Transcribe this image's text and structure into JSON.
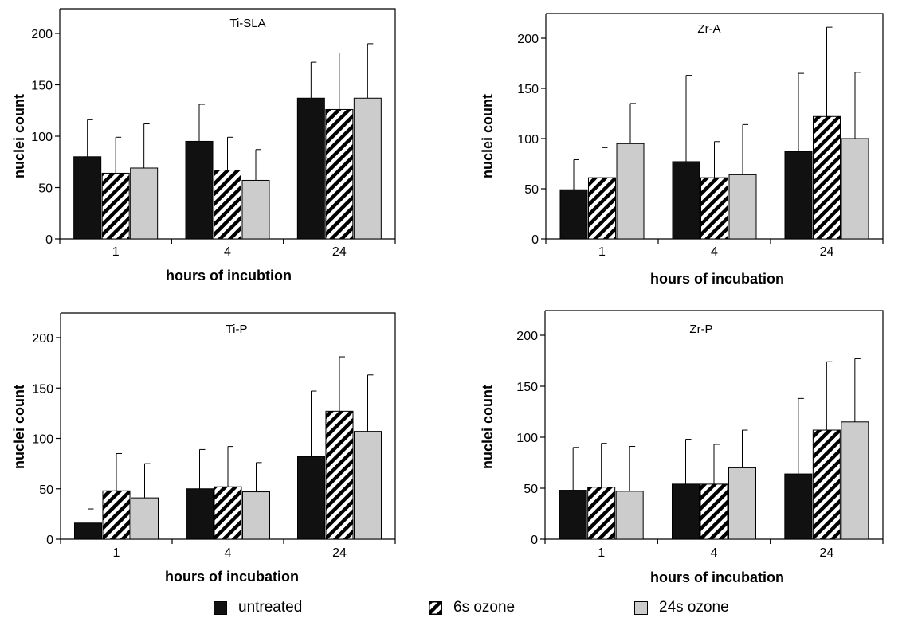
{
  "legend": {
    "untreated": "untreated",
    "ozone6": "6s ozone",
    "ozone24": "24s ozone"
  },
  "colors": {
    "untreated": "#111111",
    "ozone24": "#cccccc",
    "hatch": "#000000",
    "axis": "#000000"
  },
  "chart_data": [
    {
      "type": "bar",
      "title": "Ti-SLA",
      "xlabel": "hours of incubtion",
      "ylabel": "nuclei count",
      "ylim": [
        0,
        200
      ],
      "yticks": [
        0,
        50,
        100,
        150,
        200
      ],
      "categories": [
        "1",
        "4",
        "24"
      ],
      "series": [
        {
          "name": "untreated",
          "values": [
            80,
            95,
            137
          ],
          "errors": [
            36,
            36,
            35
          ]
        },
        {
          "name": "6s ozone",
          "values": [
            64,
            67,
            126
          ],
          "errors": [
            35,
            32,
            55
          ]
        },
        {
          "name": "24s ozone",
          "values": [
            69,
            57,
            137
          ],
          "errors": [
            43,
            30,
            53
          ]
        }
      ]
    },
    {
      "type": "bar",
      "title": "Zr-A",
      "xlabel": "hours of incubation",
      "ylabel": "nuclei count",
      "ylim": [
        0,
        200
      ],
      "yticks": [
        0,
        50,
        100,
        150,
        200
      ],
      "categories": [
        "1",
        "4",
        "24"
      ],
      "series": [
        {
          "name": "untreated",
          "values": [
            49,
            77,
            87
          ],
          "errors": [
            30,
            86,
            78
          ]
        },
        {
          "name": "6s ozone",
          "values": [
            61,
            61,
            122
          ],
          "errors": [
            30,
            36,
            89
          ]
        },
        {
          "name": "24s ozone",
          "values": [
            95,
            64,
            100
          ],
          "errors": [
            40,
            50,
            66
          ]
        }
      ]
    },
    {
      "type": "bar",
      "title": "Ti-P",
      "xlabel": "hours of incubation",
      "ylabel": "nuclei count",
      "ylim": [
        0,
        200
      ],
      "yticks": [
        0,
        50,
        100,
        150,
        200
      ],
      "categories": [
        "1",
        "4",
        "24"
      ],
      "series": [
        {
          "name": "untreated",
          "values": [
            16,
            50,
            82
          ],
          "errors": [
            14,
            39,
            65
          ]
        },
        {
          "name": "6s ozone",
          "values": [
            48,
            52,
            127
          ],
          "errors": [
            37,
            40,
            54
          ]
        },
        {
          "name": "24s ozone",
          "values": [
            41,
            47,
            107
          ],
          "errors": [
            34,
            29,
            56
          ]
        }
      ]
    },
    {
      "type": "bar",
      "title": "Zr-P",
      "xlabel": "hours of incubation",
      "ylabel": "nuclei count",
      "ylim": [
        0,
        200
      ],
      "yticks": [
        0,
        50,
        100,
        150,
        200
      ],
      "categories": [
        "1",
        "4",
        "24"
      ],
      "series": [
        {
          "name": "untreated",
          "values": [
            48,
            54,
            64
          ],
          "errors": [
            42,
            44,
            74
          ]
        },
        {
          "name": "6s ozone",
          "values": [
            51,
            54,
            107
          ],
          "errors": [
            43,
            39,
            67
          ]
        },
        {
          "name": "24s ozone",
          "values": [
            47,
            70,
            115
          ],
          "errors": [
            44,
            37,
            62
          ]
        }
      ]
    }
  ]
}
